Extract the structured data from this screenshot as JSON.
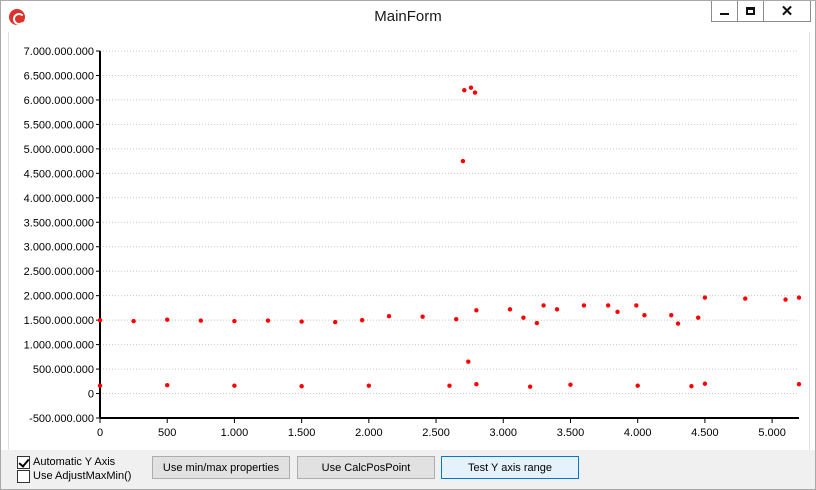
{
  "window": {
    "title": "MainForm",
    "controls": {
      "minimize": "minimize",
      "maximize": "maximize",
      "close": "✕"
    }
  },
  "chart_data": {
    "type": "scatter",
    "xlim": [
      0,
      5200
    ],
    "ylim": [
      -500000000,
      7000000000
    ],
    "y_ticks": [
      -500000000,
      0,
      500000000,
      1000000000,
      1500000000,
      2000000000,
      2500000000,
      3000000000,
      3500000000,
      4000000000,
      4500000000,
      5000000000,
      5500000000,
      6000000000,
      6500000000,
      7000000000
    ],
    "y_tick_labels": [
      "-500.000.000",
      "0",
      "500.000.000",
      "1.000.000.000",
      "1.500.000.000",
      "2.000.000.000",
      "2.500.000.000",
      "3.000.000.000",
      "3.500.000.000",
      "4.000.000.000",
      "4.500.000.000",
      "5.000.000.000",
      "5.500.000.000",
      "6.000.000.000",
      "6.500.000.000",
      "7.000.000.000"
    ],
    "x_ticks": [
      0,
      500,
      1000,
      1500,
      2000,
      2500,
      3000,
      3500,
      4000,
      4500,
      5000
    ],
    "x_tick_labels": [
      "0",
      "500",
      "1.000",
      "1.500",
      "2.000",
      "2.500",
      "3.000",
      "3.500",
      "4.000",
      "4.500",
      "5.000"
    ],
    "grid": "horizontal-dotted",
    "point_color": "#ff0000",
    "series": [
      {
        "values": [
          [
            0,
            1500000000
          ],
          [
            250,
            1480000000
          ],
          [
            500,
            1510000000
          ],
          [
            750,
            1490000000
          ],
          [
            1000,
            1480000000
          ],
          [
            1250,
            1490000000
          ],
          [
            1500,
            1470000000
          ],
          [
            1750,
            1460000000
          ],
          [
            1950,
            1500000000
          ],
          [
            2150,
            1580000000
          ],
          [
            2400,
            1570000000
          ],
          [
            2650,
            1520000000
          ],
          [
            2700,
            4750000000
          ],
          [
            2710,
            6200000000
          ],
          [
            2760,
            6250000000
          ],
          [
            2790,
            6150000000
          ],
          [
            2740,
            650000000
          ],
          [
            2800,
            1700000000
          ],
          [
            3050,
            1720000000
          ],
          [
            3150,
            1550000000
          ],
          [
            3250,
            1440000000
          ],
          [
            3300,
            1800000000
          ],
          [
            3400,
            1720000000
          ],
          [
            3600,
            1800000000
          ],
          [
            3780,
            1800000000
          ],
          [
            3850,
            1670000000
          ],
          [
            3990,
            1800000000
          ],
          [
            4050,
            1600000000
          ],
          [
            4250,
            1600000000
          ],
          [
            4300,
            1430000000
          ],
          [
            4450,
            1550000000
          ],
          [
            4500,
            1960000000
          ],
          [
            4800,
            1940000000
          ],
          [
            5100,
            1920000000
          ],
          [
            5200,
            1960000000
          ],
          [
            0,
            160000000
          ],
          [
            500,
            170000000
          ],
          [
            1000,
            160000000
          ],
          [
            1500,
            150000000
          ],
          [
            2000,
            160000000
          ],
          [
            2600,
            160000000
          ],
          [
            2800,
            190000000
          ],
          [
            3200,
            140000000
          ],
          [
            3500,
            180000000
          ],
          [
            4000,
            160000000
          ],
          [
            4400,
            150000000
          ],
          [
            4500,
            200000000
          ],
          [
            5200,
            190000000
          ]
        ]
      }
    ]
  },
  "controls": {
    "auto_y_label": "Automatic Y Axis",
    "auto_y_checked": true,
    "adjust_label": "Use AdjustMaxMin()",
    "adjust_checked": false,
    "btn_minmax": "Use min/max properties",
    "btn_calc": "Use CalcPosPoint",
    "btn_test": "Test Y axis range"
  }
}
